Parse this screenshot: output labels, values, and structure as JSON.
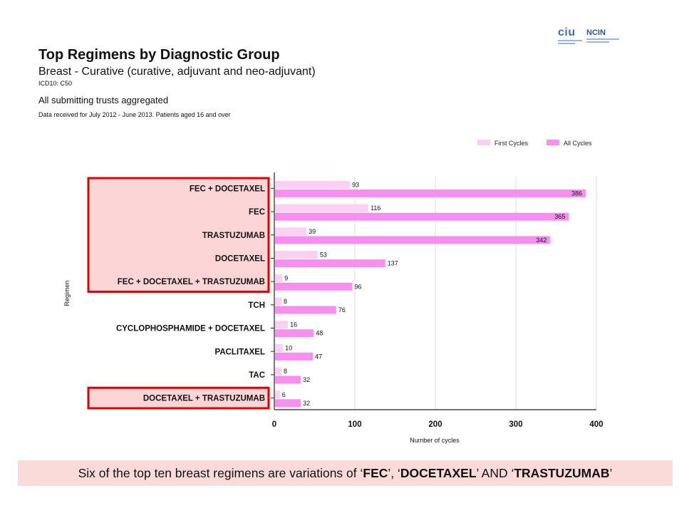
{
  "header": {
    "title": "Top Regimens by Diagnostic Group",
    "subtitle": "Breast - Curative (curative, adjuvant and neo-adjuvant)",
    "icd": "ICD10: C50",
    "trusts": "All submitting trusts aggregated",
    "period": "Data received for July 2012 - June 2013. Patients aged 16 and over"
  },
  "logos": {
    "left": "ciu",
    "right": "NCIN"
  },
  "chart_data": {
    "type": "bar",
    "orientation": "horizontal",
    "categories": [
      "FEC + DOCETAXEL",
      "FEC",
      "TRASTUZUMAB",
      "DOCETAXEL",
      "FEC + DOCETAXEL + TRASTUZUMAB",
      "TCH",
      "CYCLOPHOSPHAMIDE + DOCETAXEL",
      "PACLITAXEL",
      "TAC",
      "DOCETAXEL + TRASTUZUMAB"
    ],
    "series": [
      {
        "name": "First Cycles",
        "values": [
          93,
          116,
          39,
          53,
          9,
          8,
          16,
          10,
          8,
          6
        ],
        "color": "#fcd0f2"
      },
      {
        "name": "All Cycles",
        "values": [
          386,
          365,
          342,
          137,
          96,
          76,
          48,
          47,
          32,
          32
        ],
        "color": "#f78ff0"
      }
    ],
    "xlabel": "Number of cycles",
    "ylabel": "Regimen",
    "xlim": [
      0,
      400
    ],
    "xticks": [
      "0",
      "100",
      "200",
      "300",
      "400"
    ],
    "legend_position": "top-right",
    "grid": true,
    "highlight_groups": [
      [
        0,
        4
      ],
      [
        9,
        9
      ]
    ],
    "highlight_color": "#e00000",
    "highlight_fill": "#fcd6d6"
  },
  "caption": {
    "pre": "Six of the top ten breast regimens are variations of ‘",
    "t1": "FEC",
    "sep1": "’, ‘",
    "t2": "DOCETAXEL",
    "sep2": "’ AND ‘",
    "t3": "TRASTUZUMAB",
    "post": "’"
  }
}
